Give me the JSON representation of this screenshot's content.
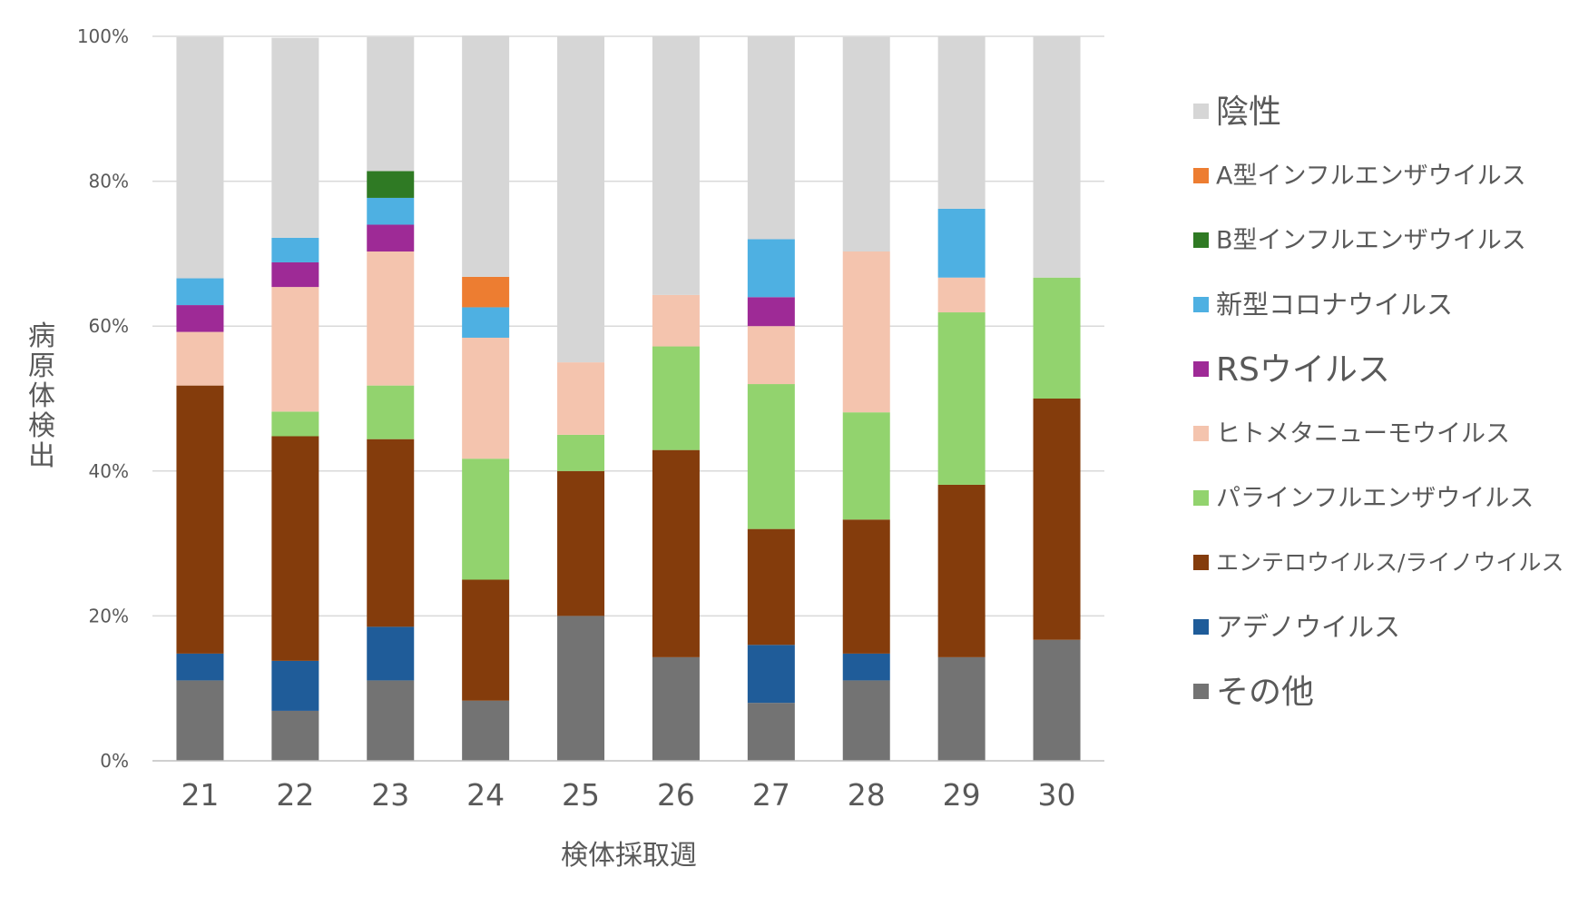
{
  "chart_data": {
    "type": "bar",
    "stacked": true,
    "percent": true,
    "categories": [
      "21",
      "22",
      "23",
      "24",
      "25",
      "26",
      "27",
      "28",
      "29",
      "30"
    ],
    "xlabel": "検体採取週",
    "ylabel": "病原体検出",
    "ylim": [
      0,
      100
    ],
    "yticks": [
      "0%",
      "20%",
      "40%",
      "60%",
      "80%",
      "100%"
    ],
    "grid": true,
    "legend_position": "right",
    "series": [
      {
        "name": "その他",
        "color": "#737373",
        "values": [
          11.1,
          6.9,
          11.1,
          8.3,
          20.0,
          14.3,
          8.0,
          11.1,
          14.3,
          16.7
        ]
      },
      {
        "name": "アデノウイルス",
        "color": "#1f5c99",
        "values": [
          3.7,
          6.9,
          7.4,
          0,
          0,
          0,
          8.0,
          3.7,
          0,
          0
        ]
      },
      {
        "name": "エンテロウイルス/ライノウイルス",
        "color": "#843c0c",
        "values": [
          37.0,
          31.0,
          25.9,
          16.7,
          20.0,
          28.6,
          16.0,
          18.5,
          23.8,
          33.3
        ]
      },
      {
        "name": "パラインフルエンザウイルス",
        "color": "#92d36e",
        "values": [
          0,
          3.4,
          7.4,
          16.7,
          5.0,
          14.3,
          20.0,
          14.8,
          23.8,
          16.7
        ]
      },
      {
        "name": "ヒトメタニューモウイルス",
        "color": "#f4c4ae",
        "values": [
          7.4,
          17.2,
          18.5,
          16.7,
          10.0,
          7.1,
          8.0,
          22.2,
          4.8,
          0
        ]
      },
      {
        "name": "RSウイルス",
        "color": "#9e2a96",
        "values": [
          3.7,
          3.4,
          3.7,
          0,
          0,
          0,
          4.0,
          0,
          0,
          0
        ]
      },
      {
        "name": "新型コロナウイルス",
        "color": "#4eb0e2",
        "values": [
          3.7,
          3.4,
          3.7,
          4.2,
          0,
          0,
          8.0,
          0,
          9.5,
          0
        ]
      },
      {
        "name": "B型インフルエンザウイルス",
        "color": "#2f7a24",
        "values": [
          0,
          0,
          3.7,
          0,
          0,
          0,
          0,
          0,
          0,
          0
        ]
      },
      {
        "name": "A型インフルエンザウイルス",
        "color": "#ed7d31",
        "values": [
          0,
          0,
          0,
          4.2,
          0,
          0,
          0,
          0,
          0,
          0
        ]
      },
      {
        "name": "陰性",
        "color": "#d6d6d6",
        "values": [
          33.3,
          27.6,
          18.5,
          33.3,
          45.0,
          35.7,
          28.0,
          29.6,
          23.8,
          33.3
        ]
      }
    ]
  }
}
